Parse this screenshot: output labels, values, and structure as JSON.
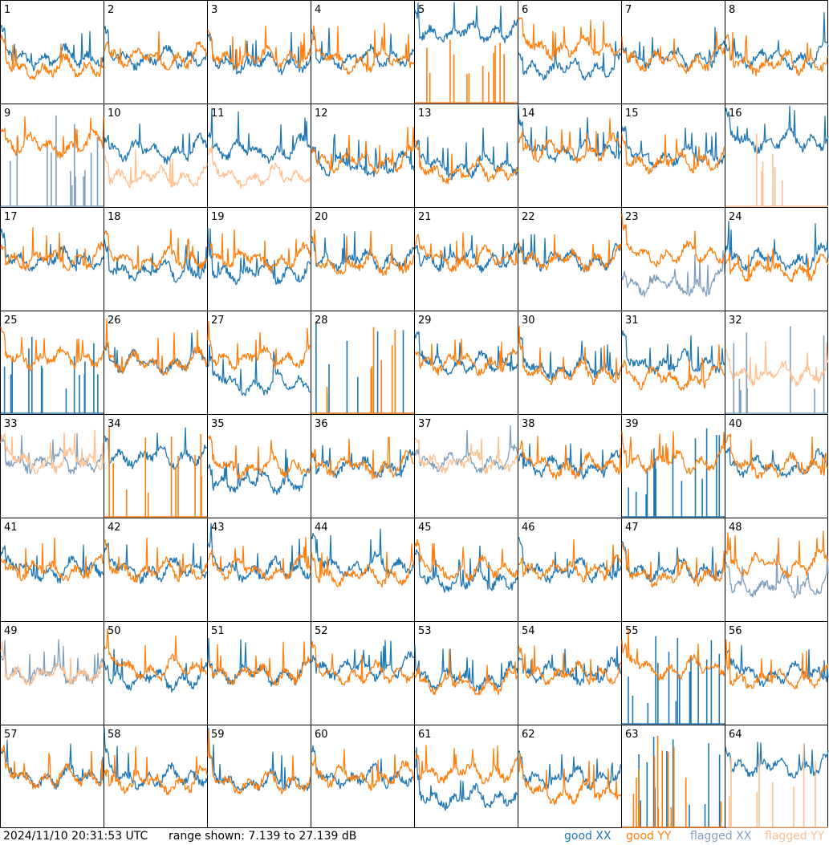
{
  "timestamp": "2024/11/10 20:31:53 UTC",
  "range_text": "range shown: 7.139 to 27.139 dB",
  "legend": [
    {
      "label": "good XX",
      "color": "#1f77b4"
    },
    {
      "label": "good YY",
      "color": "#ff7f0e"
    },
    {
      "label": "flagged XX",
      "color": "#7f9fbf"
    },
    {
      "label": "flagged YY",
      "color": "#ffbf8f"
    }
  ],
  "chart_data": {
    "type": "line",
    "layout": "small-multiples 8x8",
    "ylim": [
      7.139,
      27.139
    ],
    "yunit": "dB",
    "panels": [
      {
        "id": "1",
        "xx": "good",
        "yy": "good",
        "xx_level": 0.45,
        "yy_level": 0.35
      },
      {
        "id": "2",
        "xx": "good",
        "yy": "good",
        "xx_level": 0.45,
        "yy_level": 0.45
      },
      {
        "id": "3",
        "xx": "good",
        "yy": "good",
        "xx_level": 0.4,
        "yy_level": 0.45
      },
      {
        "id": "4",
        "xx": "good",
        "yy": "good",
        "xx_level": 0.45,
        "yy_level": 0.42
      },
      {
        "id": "5",
        "xx": "good",
        "yy": "dead",
        "xx_level": 0.7,
        "yy_level": 0.0
      },
      {
        "id": "6",
        "xx": "good",
        "yy": "good",
        "xx_level": 0.35,
        "yy_level": 0.55
      },
      {
        "id": "7",
        "xx": "good",
        "yy": "good",
        "xx_level": 0.45,
        "yy_level": 0.42
      },
      {
        "id": "8",
        "xx": "good",
        "yy": "good",
        "xx_level": 0.45,
        "yy_level": 0.4
      },
      {
        "id": "9",
        "xx": "flagged-dead",
        "yy": "good",
        "xx_level": 0.15,
        "yy_level": 0.6
      },
      {
        "id": "10",
        "xx": "good",
        "yy": "flagged",
        "xx_level": 0.55,
        "yy_level": 0.3
      },
      {
        "id": "11",
        "xx": "good",
        "yy": "flagged",
        "xx_level": 0.55,
        "yy_level": 0.3
      },
      {
        "id": "12",
        "xx": "good",
        "yy": "good",
        "xx_level": 0.4,
        "yy_level": 0.45
      },
      {
        "id": "13",
        "xx": "good",
        "yy": "good",
        "xx_level": 0.4,
        "yy_level": 0.35
      },
      {
        "id": "14",
        "xx": "good",
        "yy": "good",
        "xx_level": 0.55,
        "yy_level": 0.55
      },
      {
        "id": "15",
        "xx": "good",
        "yy": "good",
        "xx_level": 0.5,
        "yy_level": 0.45
      },
      {
        "id": "16",
        "xx": "good",
        "yy": "flagged-dead",
        "xx_level": 0.65,
        "yy_level": 0.0
      },
      {
        "id": "17",
        "xx": "good",
        "yy": "good",
        "xx_level": 0.5,
        "yy_level": 0.5
      },
      {
        "id": "18",
        "xx": "good",
        "yy": "good",
        "xx_level": 0.4,
        "yy_level": 0.5
      },
      {
        "id": "19",
        "xx": "good",
        "yy": "good",
        "xx_level": 0.38,
        "yy_level": 0.5
      },
      {
        "id": "20",
        "xx": "good",
        "yy": "good",
        "xx_level": 0.5,
        "yy_level": 0.45
      },
      {
        "id": "21",
        "xx": "good",
        "yy": "good",
        "xx_level": 0.5,
        "yy_level": 0.5
      },
      {
        "id": "22",
        "xx": "good",
        "yy": "good",
        "xx_level": 0.5,
        "yy_level": 0.5
      },
      {
        "id": "23",
        "xx": "flagged",
        "yy": "good",
        "xx_level": 0.25,
        "yy_level": 0.55
      },
      {
        "id": "24",
        "xx": "good",
        "yy": "good",
        "xx_level": 0.5,
        "yy_level": 0.4
      },
      {
        "id": "25",
        "xx": "dead",
        "yy": "good",
        "xx_level": 0.0,
        "yy_level": 0.55
      },
      {
        "id": "26",
        "xx": "good",
        "yy": "good",
        "xx_level": 0.5,
        "yy_level": 0.5
      },
      {
        "id": "27",
        "xx": "good",
        "yy": "good",
        "xx_level": 0.3,
        "yy_level": 0.55
      },
      {
        "id": "28",
        "xx": "dead",
        "yy": "dead",
        "xx_level": 0.0,
        "yy_level": 0.0
      },
      {
        "id": "29",
        "xx": "good",
        "yy": "good",
        "xx_level": 0.5,
        "yy_level": 0.5
      },
      {
        "id": "30",
        "xx": "good",
        "yy": "good",
        "xx_level": 0.45,
        "yy_level": 0.4
      },
      {
        "id": "31",
        "xx": "good",
        "yy": "good",
        "xx_level": 0.5,
        "yy_level": 0.35
      },
      {
        "id": "32",
        "xx": "flagged-dead",
        "yy": "flagged",
        "xx_level": 0.0,
        "yy_level": 0.4
      },
      {
        "id": "33",
        "xx": "flagged",
        "yy": "flagged",
        "xx_level": 0.55,
        "yy_level": 0.55
      },
      {
        "id": "34",
        "xx": "good",
        "yy": "dead",
        "xx_level": 0.6,
        "yy_level": 0.0
      },
      {
        "id": "35",
        "xx": "good",
        "yy": "good",
        "xx_level": 0.35,
        "yy_level": 0.5
      },
      {
        "id": "36",
        "xx": "good",
        "yy": "good",
        "xx_level": 0.5,
        "yy_level": 0.5
      },
      {
        "id": "37",
        "xx": "flagged",
        "yy": "flagged",
        "xx_level": 0.55,
        "yy_level": 0.55
      },
      {
        "id": "38",
        "xx": "good",
        "yy": "good",
        "xx_level": 0.5,
        "yy_level": 0.5
      },
      {
        "id": "39",
        "xx": "dead",
        "yy": "good",
        "xx_level": 0.0,
        "yy_level": 0.55
      },
      {
        "id": "40",
        "xx": "good",
        "yy": "good",
        "xx_level": 0.5,
        "yy_level": 0.5
      },
      {
        "id": "41",
        "xx": "good",
        "yy": "good",
        "xx_level": 0.5,
        "yy_level": 0.5
      },
      {
        "id": "42",
        "xx": "good",
        "yy": "good",
        "xx_level": 0.5,
        "yy_level": 0.5
      },
      {
        "id": "43",
        "xx": "good",
        "yy": "good",
        "xx_level": 0.5,
        "yy_level": 0.5
      },
      {
        "id": "44",
        "xx": "good",
        "yy": "good",
        "xx_level": 0.55,
        "yy_level": 0.45
      },
      {
        "id": "45",
        "xx": "good",
        "yy": "good",
        "xx_level": 0.4,
        "yy_level": 0.5
      },
      {
        "id": "46",
        "xx": "good",
        "yy": "good",
        "xx_level": 0.5,
        "yy_level": 0.5
      },
      {
        "id": "47",
        "xx": "good",
        "yy": "good",
        "xx_level": 0.5,
        "yy_level": 0.45
      },
      {
        "id": "48",
        "xx": "flagged",
        "yy": "good",
        "xx_level": 0.35,
        "yy_level": 0.55
      },
      {
        "id": "49",
        "xx": "flagged",
        "yy": "flagged",
        "xx_level": 0.5,
        "yy_level": 0.5
      },
      {
        "id": "50",
        "xx": "good",
        "yy": "good",
        "xx_level": 0.45,
        "yy_level": 0.55
      },
      {
        "id": "51",
        "xx": "good",
        "yy": "good",
        "xx_level": 0.5,
        "yy_level": 0.5
      },
      {
        "id": "52",
        "xx": "good",
        "yy": "good",
        "xx_level": 0.55,
        "yy_level": 0.5
      },
      {
        "id": "53",
        "xx": "good",
        "yy": "good",
        "xx_level": 0.45,
        "yy_level": 0.4
      },
      {
        "id": "54",
        "xx": "good",
        "yy": "good",
        "xx_level": 0.5,
        "yy_level": 0.5
      },
      {
        "id": "55",
        "xx": "dead",
        "yy": "good",
        "xx_level": 0.0,
        "yy_level": 0.55
      },
      {
        "id": "56",
        "xx": "good",
        "yy": "good",
        "xx_level": 0.5,
        "yy_level": 0.45
      },
      {
        "id": "57",
        "xx": "good",
        "yy": "good",
        "xx_level": 0.5,
        "yy_level": 0.5
      },
      {
        "id": "58",
        "xx": "good",
        "yy": "good",
        "xx_level": 0.5,
        "yy_level": 0.45
      },
      {
        "id": "59",
        "xx": "good",
        "yy": "good",
        "xx_level": 0.45,
        "yy_level": 0.45
      },
      {
        "id": "60",
        "xx": "good",
        "yy": "good",
        "xx_level": 0.5,
        "yy_level": 0.5
      },
      {
        "id": "61",
        "xx": "good",
        "yy": "good",
        "xx_level": 0.3,
        "yy_level": 0.55
      },
      {
        "id": "62",
        "xx": "good",
        "yy": "good",
        "xx_level": 0.5,
        "yy_level": 0.35
      },
      {
        "id": "63",
        "xx": "dead",
        "yy": "dead",
        "xx_level": 0.0,
        "yy_level": 0.0
      },
      {
        "id": "64",
        "xx": "good",
        "yy": "flagged-dead",
        "xx_level": 0.6,
        "yy_level": 0.0
      }
    ]
  }
}
